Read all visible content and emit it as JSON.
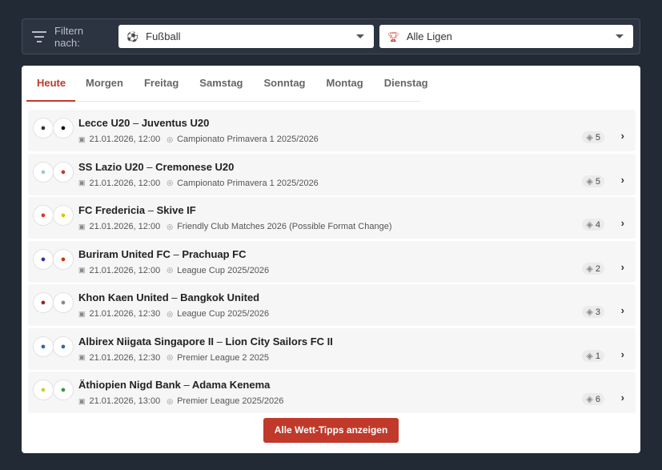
{
  "filter": {
    "label": "Filtern nach:",
    "sport": "Fußball",
    "league": "Alle Ligen"
  },
  "tabs": [
    "Heute",
    "Morgen",
    "Freitag",
    "Samstag",
    "Sonntag",
    "Montag",
    "Dienstag"
  ],
  "matches": [
    {
      "home": "Lecce U20",
      "away": "Juventus U20",
      "datetime": "21.01.2026, 12:00",
      "league": "Campionato Primavera 1 2025/2026",
      "tips": "5"
    },
    {
      "home": "SS Lazio U20",
      "away": "Cremonese U20",
      "datetime": "21.01.2026, 12:00",
      "league": "Campionato Primavera 1 2025/2026",
      "tips": "5"
    },
    {
      "home": "FC Fredericia",
      "away": "Skive IF",
      "datetime": "21.01.2026, 12:00",
      "league": "Friendly Club Matches 2026 (Possible Format Change)",
      "tips": "4"
    },
    {
      "home": "Buriram United FC",
      "away": "Prachuap FC",
      "datetime": "21.01.2026, 12:00",
      "league": "League Cup 2025/2026",
      "tips": "2"
    },
    {
      "home": "Khon Kaen United",
      "away": "Bangkok United",
      "datetime": "21.01.2026, 12:30",
      "league": "League Cup 2025/2026",
      "tips": "3"
    },
    {
      "home": "Albirex Niigata Singapore II",
      "away": "Lion City Sailors FC II",
      "datetime": "21.01.2026, 12:30",
      "league": "Premier League 2 2025",
      "tips": "1"
    },
    {
      "home": "Äthiopien Nigd Bank",
      "away": "Adama Kenema",
      "datetime": "21.01.2026, 13:00",
      "league": "Premier League 2025/2026",
      "tips": "6"
    }
  ],
  "separator": "–",
  "cta": "Alle Wett-Tipps anzeigen",
  "colors": {
    "accent": "#c0392b",
    "background": "#222a35"
  }
}
